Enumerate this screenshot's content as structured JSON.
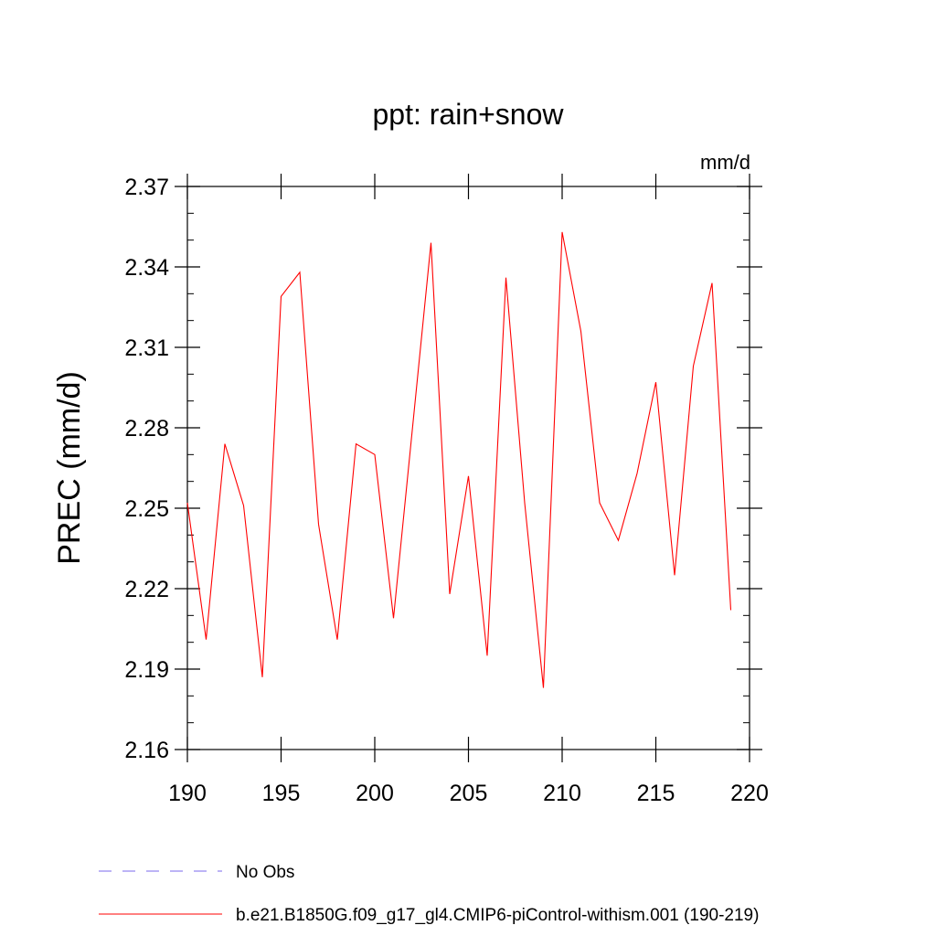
{
  "chart_data": {
    "type": "line",
    "title": "ppt: rain+snow",
    "units": "mm/d",
    "ylabel": "PREC  (mm/d)",
    "xlabel": "",
    "xlim": [
      190,
      220
    ],
    "ylim": [
      2.16,
      2.37
    ],
    "x_ticks": [
      "190",
      "195",
      "200",
      "205",
      "210",
      "215",
      "220"
    ],
    "y_ticks": [
      "2.16",
      "2.19",
      "2.22",
      "2.25",
      "2.28",
      "2.31",
      "2.34",
      "2.37"
    ],
    "grid": false,
    "x": [
      190,
      191,
      192,
      193,
      194,
      195,
      196,
      197,
      198,
      199,
      200,
      201,
      202,
      203,
      204,
      205,
      206,
      207,
      208,
      209,
      210,
      211,
      212,
      213,
      214,
      215,
      216,
      217,
      218,
      219
    ],
    "series": [
      {
        "name": "b.e21.B1850G.f09_g17_gl4.CMIP6-piControl-withism.001 (190-219)",
        "color": "#ff0000",
        "values": [
          2.252,
          2.201,
          2.274,
          2.251,
          2.187,
          2.329,
          2.338,
          2.244,
          2.201,
          2.274,
          2.27,
          2.209,
          2.279,
          2.349,
          2.218,
          2.262,
          2.195,
          2.336,
          2.252,
          2.183,
          2.353,
          2.316,
          2.252,
          2.238,
          2.263,
          2.297,
          2.225,
          2.303,
          2.334,
          2.212
        ]
      }
    ],
    "legend": [
      {
        "label": "No Obs",
        "color": "#7b68ee",
        "style": "dashed"
      },
      {
        "label": "b.e21.B1850G.f09_g17_gl4.CMIP6-piControl-withism.001 (190-219)",
        "color": "#ff0000",
        "style": "solid"
      }
    ]
  }
}
